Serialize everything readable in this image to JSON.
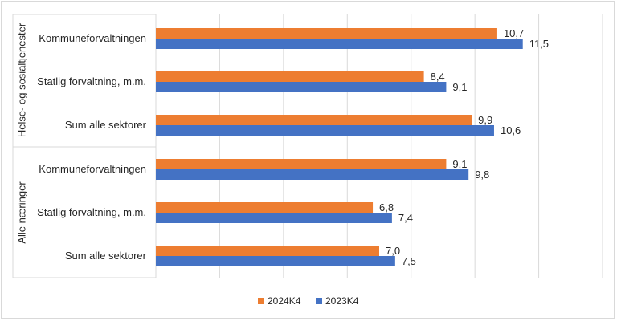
{
  "chart_data": {
    "type": "bar",
    "orientation": "horizontal",
    "groups": [
      {
        "name": "Helse- og sosialtjenester",
        "categories": [
          "Kommuneforvaltningen",
          "Statlig forvaltning, m.m.",
          "Sum alle sektorer"
        ]
      },
      {
        "name": "Alle næringer",
        "categories": [
          "Kommuneforvaltningen",
          "Statlig forvaltning, m.m.",
          "Sum alle sektorer"
        ]
      }
    ],
    "series": [
      {
        "name": "2024K4",
        "color": "#ED7D31",
        "values": [
          10.7,
          8.4,
          9.9,
          9.1,
          6.8,
          7.0
        ],
        "labels": [
          "10,7",
          "8,4",
          "9,9",
          "9,1",
          "6,8",
          "7,0"
        ]
      },
      {
        "name": "2023K4",
        "color": "#4472C4",
        "values": [
          11.5,
          9.1,
          10.6,
          9.8,
          7.4,
          7.5
        ],
        "labels": [
          "11,5",
          "9,1",
          "10,6",
          "9,8",
          "7,4",
          "7,5"
        ]
      }
    ],
    "xlim": [
      0,
      14
    ],
    "x_gridlines": [
      0,
      2,
      4,
      6,
      8,
      10,
      12,
      14
    ],
    "title": "",
    "legend_position": "bottom"
  }
}
